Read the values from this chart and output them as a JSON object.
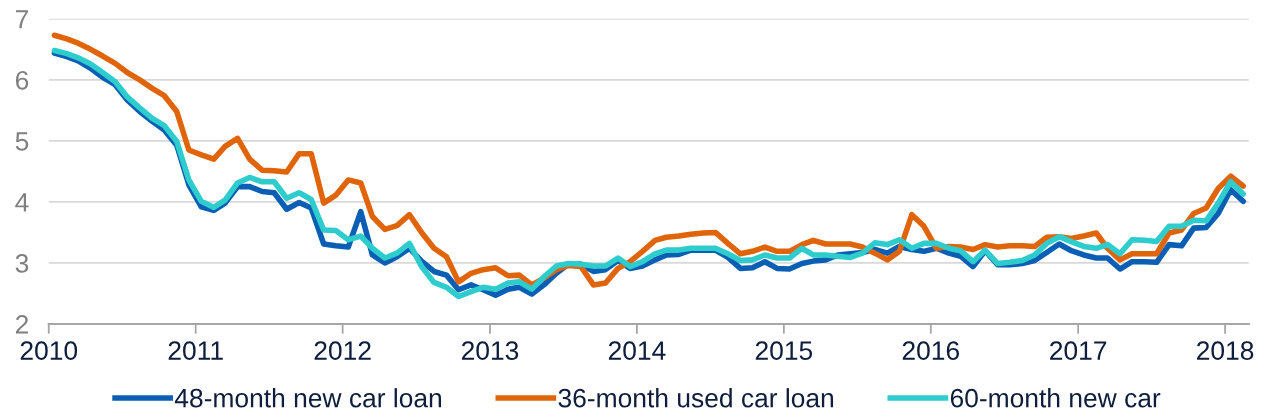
{
  "chart_data": {
    "type": "line",
    "x": [
      "2010-01-15",
      "2010-02-15",
      "2010-03-15",
      "2010-04-15",
      "2010-05-15",
      "2010-06-15",
      "2010-07-15",
      "2010-08-15",
      "2010-09-15",
      "2010-10-15",
      "2010-11-15",
      "2010-12-15",
      "2011-01-15",
      "2011-02-15",
      "2011-03-15",
      "2011-04-15",
      "2011-05-15",
      "2011-06-15",
      "2011-07-15",
      "2011-08-15",
      "2011-09-15",
      "2011-10-15",
      "2011-11-15",
      "2011-12-15",
      "2012-01-15",
      "2012-02-15",
      "2012-03-15",
      "2012-04-15",
      "2012-05-15",
      "2012-06-15",
      "2012-07-15",
      "2012-08-15",
      "2012-09-15",
      "2012-10-15",
      "2012-11-15",
      "2012-12-15",
      "2013-01-15",
      "2013-02-15",
      "2013-03-15",
      "2013-04-15",
      "2013-05-15",
      "2013-06-15",
      "2013-07-15",
      "2013-08-15",
      "2013-09-15",
      "2013-10-15",
      "2013-11-15",
      "2013-12-15",
      "2014-01-15",
      "2014-02-15",
      "2014-03-15",
      "2014-04-15",
      "2014-05-15",
      "2014-06-15",
      "2014-07-15",
      "2014-08-15",
      "2014-09-15",
      "2014-10-15",
      "2014-11-15",
      "2014-12-15",
      "2015-01-15",
      "2015-02-15",
      "2015-03-15",
      "2015-04-15",
      "2015-05-15",
      "2015-06-15",
      "2015-07-15",
      "2015-08-15",
      "2015-09-15",
      "2015-10-15",
      "2015-11-15",
      "2015-12-15",
      "2016-01-15",
      "2016-02-15",
      "2016-03-15",
      "2016-04-15",
      "2016-05-15",
      "2016-06-15",
      "2016-07-15",
      "2016-08-15",
      "2016-09-15",
      "2016-10-15",
      "2016-11-15",
      "2016-12-15",
      "2017-01-15",
      "2017-02-15",
      "2017-03-15",
      "2017-04-15",
      "2017-05-15",
      "2017-06-15",
      "2017-07-15",
      "2017-08-15",
      "2017-09-15",
      "2017-10-15",
      "2017-11-15",
      "2017-12-15",
      "2018-01-15",
      "2018-02-15"
    ],
    "series": [
      {
        "name": "48-month new car loan",
        "color": "#0a5eb4",
        "values": [
          6.44,
          6.38,
          6.31,
          6.19,
          6.04,
          5.92,
          5.67,
          5.48,
          5.32,
          5.18,
          4.93,
          4.28,
          3.92,
          3.86,
          3.98,
          4.25,
          4.25,
          4.17,
          4.15,
          3.88,
          3.99,
          3.9,
          3.31,
          3.28,
          3.26,
          3.84,
          3.13,
          3.0,
          3.1,
          3.24,
          3.03,
          2.86,
          2.8,
          2.56,
          2.64,
          2.56,
          2.47,
          2.57,
          2.6,
          2.49,
          2.64,
          2.83,
          2.98,
          2.98,
          2.86,
          2.89,
          3.04,
          2.91,
          2.95,
          3.05,
          3.13,
          3.14,
          3.21,
          3.21,
          3.21,
          3.09,
          2.91,
          2.92,
          3.02,
          2.91,
          2.9,
          2.99,
          3.03,
          3.05,
          3.13,
          3.15,
          3.17,
          3.22,
          3.16,
          3.27,
          3.22,
          3.19,
          3.24,
          3.16,
          3.11,
          2.94,
          3.2,
          2.97,
          2.97,
          2.99,
          3.04,
          3.17,
          3.31,
          3.2,
          3.13,
          3.08,
          3.08,
          2.9,
          3.02,
          3.02,
          3.01,
          3.3,
          3.28,
          3.57,
          3.58,
          3.81,
          4.2,
          4.01
        ]
      },
      {
        "name": "36-month used car loan",
        "color": "#e0640a",
        "values": [
          6.73,
          6.67,
          6.6,
          6.5,
          6.39,
          6.27,
          6.12,
          6.0,
          5.86,
          5.74,
          5.48,
          4.85,
          4.77,
          4.7,
          4.91,
          5.04,
          4.7,
          4.52,
          4.51,
          4.49,
          4.79,
          4.79,
          3.98,
          4.11,
          4.36,
          4.31,
          3.76,
          3.55,
          3.61,
          3.79,
          3.5,
          3.24,
          3.1,
          2.69,
          2.83,
          2.89,
          2.92,
          2.79,
          2.8,
          2.64,
          2.75,
          2.89,
          2.96,
          2.94,
          2.64,
          2.67,
          2.91,
          3.02,
          3.19,
          3.37,
          3.42,
          3.44,
          3.47,
          3.49,
          3.5,
          3.32,
          3.15,
          3.19,
          3.26,
          3.19,
          3.19,
          3.3,
          3.37,
          3.31,
          3.31,
          3.31,
          3.26,
          3.16,
          3.05,
          3.19,
          3.79,
          3.6,
          3.24,
          3.27,
          3.26,
          3.22,
          3.3,
          3.26,
          3.28,
          3.28,
          3.27,
          3.42,
          3.43,
          3.4,
          3.44,
          3.49,
          3.24,
          3.05,
          3.15,
          3.15,
          3.15,
          3.49,
          3.54,
          3.81,
          3.9,
          4.22,
          4.42,
          4.26
        ]
      },
      {
        "name": "60-month new car",
        "color": "#2ecccc",
        "values": [
          6.48,
          6.43,
          6.36,
          6.26,
          6.12,
          5.97,
          5.72,
          5.54,
          5.37,
          5.25,
          4.99,
          4.36,
          4.01,
          3.91,
          4.03,
          4.31,
          4.4,
          4.33,
          4.33,
          4.06,
          4.15,
          4.04,
          3.54,
          3.53,
          3.38,
          3.44,
          3.24,
          3.08,
          3.16,
          3.32,
          2.94,
          2.68,
          2.6,
          2.45,
          2.53,
          2.6,
          2.57,
          2.67,
          2.69,
          2.57,
          2.77,
          2.95,
          2.99,
          2.98,
          2.95,
          2.95,
          3.08,
          2.94,
          3.02,
          3.15,
          3.21,
          3.21,
          3.24,
          3.24,
          3.24,
          3.15,
          3.04,
          3.05,
          3.13,
          3.08,
          3.08,
          3.24,
          3.13,
          3.13,
          3.11,
          3.09,
          3.16,
          3.33,
          3.3,
          3.38,
          3.24,
          3.32,
          3.32,
          3.24,
          3.2,
          3.02,
          3.21,
          2.99,
          3.01,
          3.04,
          3.13,
          3.32,
          3.43,
          3.35,
          3.27,
          3.24,
          3.3,
          3.15,
          3.38,
          3.37,
          3.35,
          3.6,
          3.6,
          3.7,
          3.69,
          3.98,
          4.33,
          4.13
        ]
      }
    ],
    "xlim": [
      "2010-01-01",
      "2018-03-01"
    ],
    "xticks": [
      "2010",
      "2011",
      "2012",
      "2013",
      "2014",
      "2015",
      "2016",
      "2017",
      "2018"
    ],
    "ylim": [
      2,
      7
    ],
    "yticks": [
      2,
      3,
      4,
      5,
      6,
      7
    ],
    "grid": "y",
    "legend": "bottom"
  }
}
